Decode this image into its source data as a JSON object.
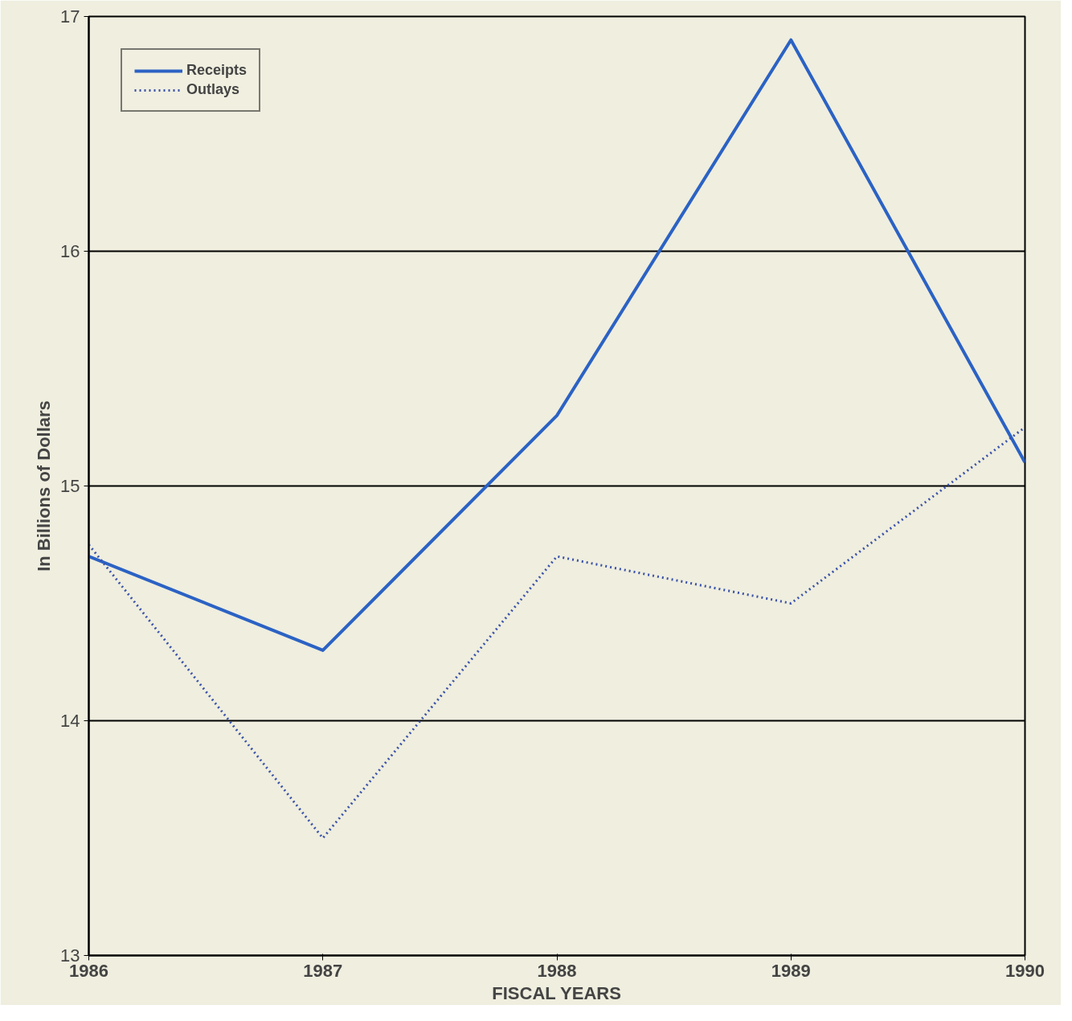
{
  "chart_data": {
    "type": "line",
    "xlabel": "FISCAL YEARS",
    "ylabel": "In Billions of Dollars",
    "x": [
      1986,
      1987,
      1988,
      1989,
      1990
    ],
    "series": [
      {
        "name": "Receipts",
        "color": "#2b62c4",
        "values": [
          14.7,
          14.3,
          15.3,
          16.9,
          15.1
        ],
        "line_style": "solid"
      },
      {
        "name": "Outlays",
        "color": "#3a52a8",
        "values": [
          14.75,
          13.5,
          14.7,
          14.5,
          15.25
        ],
        "line_style": "dotted"
      }
    ],
    "xlim": [
      1986,
      1990
    ],
    "xticks": [
      1986,
      1987,
      1988,
      1989,
      1990
    ],
    "ylim": [
      13,
      17
    ],
    "yticks": [
      13,
      14,
      15,
      16,
      17
    ],
    "grid": "y",
    "legend": "top left",
    "marker": "none"
  }
}
